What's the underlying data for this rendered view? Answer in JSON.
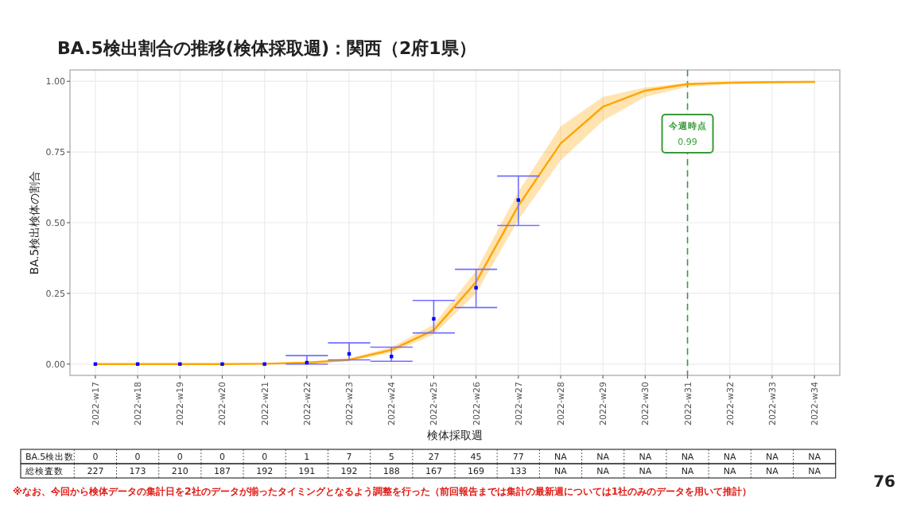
{
  "chart_data": {
    "type": "line",
    "title": "BA.5検出割合の推移(検体採取週)：関西（2府1県）",
    "xlabel": "検体採取週",
    "ylabel": "BA.5検出検体の割合",
    "categories": [
      "2022-w17",
      "2022-w18",
      "2022-w19",
      "2022-w20",
      "2022-w21",
      "2022-w22",
      "2022-w23",
      "2022-w24",
      "2022-w25",
      "2022-w26",
      "2022-w27",
      "2022-w28",
      "2022-w29",
      "2022-w30",
      "2022-w31",
      "2022-w32",
      "2022-w33",
      "2022-w34"
    ],
    "ylim": [
      -0.04,
      1.04
    ],
    "yticks": [
      {
        "value": 0,
        "label": "0.00"
      },
      {
        "value": 0.25,
        "label": "0.25"
      },
      {
        "value": 0.5,
        "label": "0.50"
      },
      {
        "value": 0.75,
        "label": "0.75"
      },
      {
        "value": 1,
        "label": "1.00"
      }
    ],
    "grid": true,
    "series": [
      {
        "color": "#ffa500",
        "values": [
          0,
          0,
          0,
          0,
          0.001,
          0.005,
          0.015,
          0.05,
          0.12,
          0.29,
          0.56,
          0.78,
          0.91,
          0.967,
          0.99,
          0.995,
          0.997,
          0.998
        ],
        "lower": [
          0,
          0,
          0,
          0,
          0,
          0.002,
          0.01,
          0.04,
          0.105,
          0.25,
          0.51,
          0.72,
          0.86,
          0.945,
          0.98,
          0.99,
          0.993,
          0.995
        ],
        "upper": [
          0,
          0,
          0,
          0,
          0.002,
          0.008,
          0.02,
          0.06,
          0.14,
          0.33,
          0.61,
          0.84,
          0.945,
          0.978,
          0.995,
          0.998,
          0.999,
          1.0
        ]
      },
      {
        "type": "scatter",
        "color": "#0000ff",
        "marker": "square",
        "values": [
          0,
          0,
          0,
          0,
          0,
          0.005,
          0.036,
          0.027,
          0.16,
          0.27,
          0.58,
          null,
          null,
          null,
          null,
          null,
          null,
          null
        ],
        "errors": [
          null,
          null,
          null,
          null,
          null,
          [
            0,
            0.03
          ],
          [
            0.015,
            0.075
          ],
          [
            0.01,
            0.06
          ],
          [
            0.11,
            0.225
          ],
          [
            0.2,
            0.335
          ],
          [
            0.49,
            0.665
          ],
          null,
          null,
          null,
          null,
          null,
          null,
          null
        ]
      }
    ],
    "ref_lines": [
      {
        "axis": "x",
        "value": "2022-w31",
        "label": "今週時点",
        "color": "#3a9a3a",
        "line_style": "dashed"
      }
    ],
    "annotations": [
      "0.99",
      "BA.5検出数",
      "0",
      "0",
      "0",
      "0",
      "0",
      "1",
      "7",
      "5",
      "27",
      "45",
      "77",
      "NA",
      "NA",
      "NA",
      "NA",
      "NA",
      "NA",
      "NA",
      "総検査数",
      "227",
      "173",
      "210",
      "187",
      "192",
      "191",
      "192",
      "188",
      "167",
      "169",
      "133",
      "NA",
      "NA",
      "NA",
      "NA",
      "NA",
      "NA",
      "NA",
      "※なお、今回から検体データの集計日を2社のデータが揃ったタイミングとなるよう調整を行った（前回報告までは集計の最新週については1社のみのデータを用いて推計）",
      "76"
    ]
  }
}
